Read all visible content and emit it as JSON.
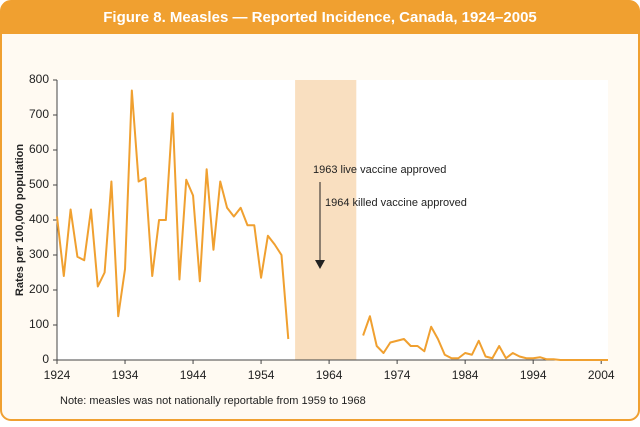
{
  "chart_data": {
    "type": "line",
    "title": "Figure 8. Measles — Reported Incidence, Canada, 1924–2005",
    "y_label": "Rates per 100,000 population",
    "note": "Note: measles was not nationally reportable from 1959 to 1968",
    "annotations": [
      "1963 live vaccine approved",
      "1964 killed vaccine approved"
    ],
    "shade_xrange": [
      1959,
      1968
    ],
    "x": [
      1924,
      1925,
      1926,
      1927,
      1928,
      1929,
      1930,
      1931,
      1932,
      1933,
      1934,
      1935,
      1936,
      1937,
      1938,
      1939,
      1940,
      1941,
      1942,
      1943,
      1944,
      1945,
      1946,
      1947,
      1948,
      1949,
      1950,
      1951,
      1952,
      1953,
      1954,
      1955,
      1956,
      1957,
      1958,
      1959,
      1960,
      1961,
      1962,
      1963,
      1964,
      1965,
      1966,
      1967,
      1968,
      1969,
      1970,
      1971,
      1972,
      1973,
      1974,
      1975,
      1976,
      1977,
      1978,
      1979,
      1980,
      1981,
      1982,
      1983,
      1984,
      1985,
      1986,
      1987,
      1988,
      1989,
      1990,
      1991,
      1992,
      1993,
      1994,
      1995,
      1996,
      1997,
      1998,
      1999,
      2000,
      2001,
      2002,
      2003,
      2004,
      2005
    ],
    "series": [
      {
        "color": "#f0a030",
        "values": [
          410,
          240,
          430,
          295,
          285,
          430,
          210,
          250,
          510,
          125,
          260,
          770,
          510,
          520,
          240,
          400,
          400,
          705,
          230,
          515,
          470,
          225,
          545,
          315,
          510,
          435,
          410,
          435,
          385,
          385,
          235,
          355,
          330,
          300,
          60,
          null,
          null,
          null,
          null,
          null,
          null,
          null,
          null,
          null,
          null,
          70,
          125,
          40,
          20,
          50,
          55,
          60,
          40,
          40,
          25,
          95,
          60,
          15,
          5,
          5,
          20,
          15,
          55,
          10,
          5,
          40,
          5,
          20,
          10,
          5,
          5,
          8,
          2,
          2,
          0,
          0,
          0,
          0,
          0,
          0,
          0,
          0
        ]
      }
    ],
    "xlim": [
      1924,
      2005
    ],
    "xticks": [
      1924,
      1934,
      1944,
      1954,
      1964,
      1974,
      1984,
      1994,
      2004
    ],
    "ylim": [
      0,
      800
    ],
    "yticks": [
      0,
      100,
      200,
      300,
      400,
      500,
      600,
      700,
      800
    ],
    "grid": false
  }
}
